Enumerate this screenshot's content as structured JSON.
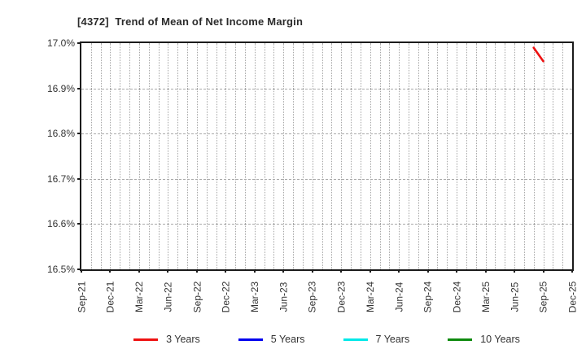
{
  "chart_data": {
    "type": "line",
    "title": "[4372]  Trend of Mean of Net Income Margin",
    "xlabel": "",
    "ylabel": "",
    "ylim": [
      16.5,
      17.0
    ],
    "y_ticks": [
      {
        "value": 17.0,
        "label": "17.0%"
      },
      {
        "value": 16.9,
        "label": "16.9%"
      },
      {
        "value": 16.8,
        "label": "16.8%"
      },
      {
        "value": 16.7,
        "label": "16.7%"
      },
      {
        "value": 16.6,
        "label": "16.6%"
      },
      {
        "value": 16.5,
        "label": "16.5%"
      }
    ],
    "x_axis": {
      "start": "Sep-21",
      "end": "Dec-25",
      "total_month_intervals": 51,
      "tick_labels": [
        "Sep-21",
        "Dec-21",
        "Mar-22",
        "Jun-22",
        "Sep-22",
        "Dec-22",
        "Mar-23",
        "Jun-23",
        "Sep-23",
        "Dec-23",
        "Mar-24",
        "Jun-24",
        "Sep-24",
        "Dec-24",
        "Mar-25",
        "Jun-25",
        "Sep-25",
        "Dec-25"
      ],
      "tick_month_indices": [
        0,
        3,
        6,
        9,
        12,
        15,
        18,
        21,
        24,
        27,
        30,
        33,
        36,
        39,
        42,
        45,
        48,
        51
      ]
    },
    "grid": {
      "vertical": "dotted, monthly",
      "horizontal": "dashed, every 0.1%"
    },
    "legend_position": "bottom",
    "series": [
      {
        "name": "3 Years",
        "color": "#ee1111",
        "points": [
          {
            "month": "Aug-25",
            "month_index": 47,
            "value": 16.99
          },
          {
            "month": "Sep-25",
            "month_index": 48,
            "value": 16.96
          }
        ]
      },
      {
        "name": "5 Years",
        "color": "#0000ee",
        "points": []
      },
      {
        "name": "7 Years",
        "color": "#00e8e8",
        "points": []
      },
      {
        "name": "10 Years",
        "color": "#0e8a0e",
        "points": []
      }
    ]
  },
  "colors": {
    "frame": "#1b1b1b",
    "grid": "#a9a9a9",
    "text": "#333333",
    "background": "#ffffff"
  }
}
